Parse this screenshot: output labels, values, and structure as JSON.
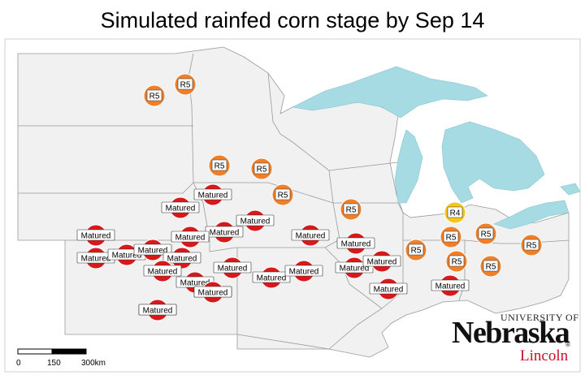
{
  "title": "Simulated rainfed corn stage by Sep 14",
  "colors": {
    "matured": "#d7191c",
    "r5": "#f07f2a",
    "r4": "#f5c518",
    "land": "#f1f1f1",
    "lake": "#a6dbe3",
    "border": "#9a9a9a"
  },
  "stages": [
    "Matured",
    "R5",
    "R4"
  ],
  "markers": [
    {
      "stage": "r5",
      "label": "R5"
    },
    {
      "stage": "r5",
      "label": "R5"
    },
    {
      "stage": "r5",
      "label": "R5"
    },
    {
      "stage": "r5",
      "label": "R5"
    },
    {
      "stage": "r5",
      "label": "R5"
    },
    {
      "stage": "r5",
      "label": "R5"
    },
    {
      "stage": "r5",
      "label": "R5"
    },
    {
      "stage": "r5",
      "label": "R5"
    },
    {
      "stage": "r5",
      "label": "R5"
    },
    {
      "stage": "r5",
      "label": "R5"
    },
    {
      "stage": "r5",
      "label": "R5"
    },
    {
      "stage": "r5",
      "label": "R5"
    },
    {
      "stage": "r4",
      "label": "R4"
    },
    {
      "stage": "matured",
      "label": "Matured"
    },
    {
      "stage": "matured",
      "label": "Matured"
    },
    {
      "stage": "matured",
      "label": "Matured"
    },
    {
      "stage": "matured",
      "label": "Matured"
    },
    {
      "stage": "matured",
      "label": "Matured"
    },
    {
      "stage": "matured",
      "label": "Matured"
    },
    {
      "stage": "matured",
      "label": "Matured"
    },
    {
      "stage": "matured",
      "label": "Matured"
    },
    {
      "stage": "matured",
      "label": "Matured"
    },
    {
      "stage": "matured",
      "label": "Matured"
    },
    {
      "stage": "matured",
      "label": "Matured"
    },
    {
      "stage": "matured",
      "label": "Matured"
    },
    {
      "stage": "matured",
      "label": "Matured"
    },
    {
      "stage": "matured",
      "label": "Matured"
    },
    {
      "stage": "matured",
      "label": "Matured"
    },
    {
      "stage": "matured",
      "label": "Matured"
    },
    {
      "stage": "matured",
      "label": "Matured"
    },
    {
      "stage": "matured",
      "label": "Matured"
    },
    {
      "stage": "matured",
      "label": "Matured"
    },
    {
      "stage": "matured",
      "label": "Matured"
    },
    {
      "stage": "matured",
      "label": "Matured"
    },
    {
      "stage": "matured",
      "label": "Matured"
    },
    {
      "stage": "matured",
      "label": "Matured"
    },
    {
      "stage": "matured",
      "label": "Matured"
    },
    {
      "stage": "matured",
      "label": "Matured"
    }
  ],
  "scale_bar": {
    "ticks": [
      "0",
      "150",
      "300km"
    ]
  },
  "logo": {
    "university": "UNIVERSITY OF",
    "name": "Nebraska",
    "campus": "Lincoln",
    "registered": "®"
  }
}
